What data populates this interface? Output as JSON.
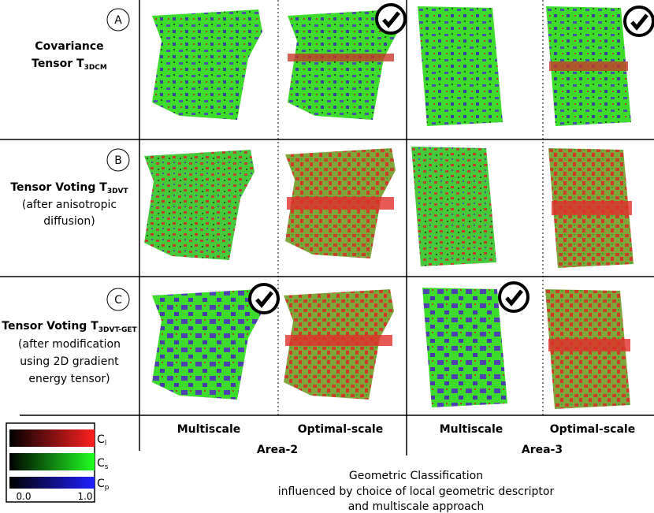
{
  "rows": [
    {
      "letter": "A",
      "lines": [
        "Covariance",
        "Tensor T"
      ],
      "sub": "3DCM",
      "notes": []
    },
    {
      "letter": "B",
      "lines": [
        "Tensor Voting T"
      ],
      "sub": "3DVT",
      "notes": [
        "(after anisotropic",
        "diffusion)"
      ]
    },
    {
      "letter": "C",
      "lines": [
        "Tensor Voting T"
      ],
      "sub": "3DVT-GET",
      "notes": [
        "(after modification",
        "using 2D gradient",
        "energy tensor)"
      ]
    }
  ],
  "columns": [
    "Multiscale",
    "Optimal-scale",
    "Multiscale",
    "Optimal-scale"
  ],
  "areas": [
    "Area-2",
    "Area-3"
  ],
  "legend": {
    "items": [
      {
        "symbol": "C",
        "sub": "l"
      },
      {
        "symbol": "C",
        "sub": "s"
      },
      {
        "symbol": "C",
        "sub": "p"
      }
    ],
    "min": "0.0",
    "max": "1.0"
  },
  "caption": [
    "Geometric Classification",
    "influenced by choice of local geometric descriptor",
    "and multiscale approach"
  ]
}
